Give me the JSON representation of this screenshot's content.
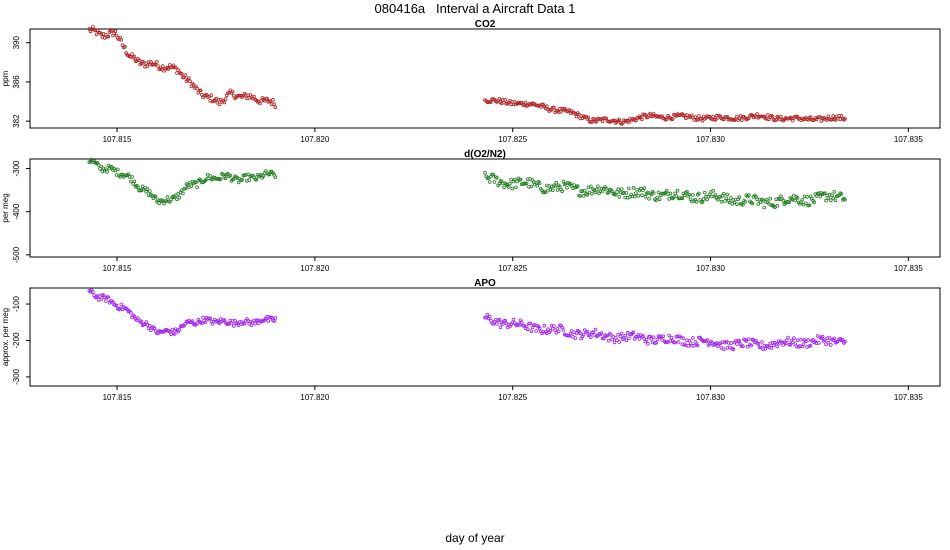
{
  "page": {
    "title": "080416a   Interval a Aircraft Data 1",
    "xlabel": "day of year"
  },
  "chart_data": [
    {
      "type": "scatter",
      "title": "CO2",
      "ylabel": "ppm",
      "color": "#b22222",
      "xlim": [
        107.8128,
        107.8358
      ],
      "ylim": [
        381.3,
        391.4
      ],
      "x_ticks": [
        "107.815",
        "107.820",
        "107.825",
        "107.830",
        "107.835"
      ],
      "y_ticks": [
        "382",
        "386",
        "390"
      ],
      "series": [
        {
          "segments": [
            {
              "x_start": 107.8143,
              "x_end": 107.819,
              "profile": [
                [
                  0,
                  391.3
                ],
                [
                  0.06,
                  390.8
                ],
                [
                  0.14,
                  390.9
                ],
                [
                  0.17,
                  390.2
                ],
                [
                  0.22,
                  388.5
                ],
                [
                  0.27,
                  388.0
                ],
                [
                  0.4,
                  387.6
                ],
                [
                  0.48,
                  387.2
                ],
                [
                  0.56,
                  385.5
                ],
                [
                  0.64,
                  384.3
                ],
                [
                  0.7,
                  384.0
                ],
                [
                  0.76,
                  384.7
                ],
                [
                  0.85,
                  384.5
                ],
                [
                  1,
                  383.8
                ]
              ],
              "noise": 0.35
            },
            {
              "x_start": 107.8243,
              "x_end": 107.8334,
              "profile": [
                [
                  0,
                  384.1
                ],
                [
                  0.08,
                  383.9
                ],
                [
                  0.16,
                  383.5
                ],
                [
                  0.24,
                  382.8
                ],
                [
                  0.3,
                  382.1
                ],
                [
                  0.38,
                  382.0
                ],
                [
                  0.46,
                  382.5
                ],
                [
                  0.56,
                  382.4
                ],
                [
                  0.66,
                  382.3
                ],
                [
                  0.76,
                  382.5
                ],
                [
                  0.86,
                  382.2
                ],
                [
                  1,
                  382.3
                ]
              ],
              "noise": 0.25
            }
          ]
        }
      ]
    },
    {
      "type": "scatter",
      "title": "d(O2/N2)",
      "ylabel": "per meg",
      "color": "#1e7d1e",
      "xlim": [
        107.8128,
        107.8358
      ],
      "ylim": [
        -505,
        -278
      ],
      "x_ticks": [
        "107.815",
        "107.820",
        "107.825",
        "107.830",
        "107.835"
      ],
      "y_ticks": [
        "-300",
        "-400",
        "-500"
      ],
      "series": [
        {
          "segments": [
            {
              "x_start": 107.8143,
              "x_end": 107.819,
              "profile": [
                [
                  0,
                  -283
                ],
                [
                  0.08,
                  -300
                ],
                [
                  0.18,
                  -310
                ],
                [
                  0.28,
                  -345
                ],
                [
                  0.36,
                  -372
                ],
                [
                  0.44,
                  -375
                ],
                [
                  0.52,
                  -345
                ],
                [
                  0.62,
                  -325
                ],
                [
                  0.72,
                  -318
                ],
                [
                  0.82,
                  -326
                ],
                [
                  0.92,
                  -318
                ],
                [
                  1,
                  -312
                ]
              ],
              "noise": 8
            },
            {
              "x_start": 107.8243,
              "x_end": 107.8334,
              "profile": [
                [
                  0,
                  -325
                ],
                [
                  0.1,
                  -335
                ],
                [
                  0.2,
                  -345
                ],
                [
                  0.32,
                  -350
                ],
                [
                  0.44,
                  -358
                ],
                [
                  0.56,
                  -362
                ],
                [
                  0.66,
                  -368
                ],
                [
                  0.76,
                  -378
                ],
                [
                  0.86,
                  -372
                ],
                [
                  1,
                  -365
                ]
              ],
              "noise": 12
            }
          ]
        }
      ]
    },
    {
      "type": "scatter",
      "title": "APO",
      "ylabel": "approx. per meg",
      "color": "#a020f0",
      "xlim": [
        107.8128,
        107.8358
      ],
      "ylim": [
        -325,
        -56
      ],
      "x_ticks": [
        "107.815",
        "107.820",
        "107.825",
        "107.830",
        "107.835"
      ],
      "y_ticks": [
        "-100",
        "-200",
        "-300"
      ],
      "series": [
        {
          "segments": [
            {
              "x_start": 107.8143,
              "x_end": 107.819,
              "profile": [
                [
                  0,
                  -68
                ],
                [
                  0.08,
                  -85
                ],
                [
                  0.18,
                  -110
                ],
                [
                  0.28,
                  -150
                ],
                [
                  0.38,
                  -178
                ],
                [
                  0.46,
                  -175
                ],
                [
                  0.54,
                  -150
                ],
                [
                  0.64,
                  -145
                ],
                [
                  0.74,
                  -150
                ],
                [
                  0.86,
                  -150
                ],
                [
                  1,
                  -140
                ]
              ],
              "noise": 8
            },
            {
              "x_start": 107.8243,
              "x_end": 107.8334,
              "profile": [
                [
                  0,
                  -140
                ],
                [
                  0.1,
                  -160
                ],
                [
                  0.22,
                  -175
                ],
                [
                  0.34,
                  -188
                ],
                [
                  0.46,
                  -195
                ],
                [
                  0.58,
                  -200
                ],
                [
                  0.66,
                  -210
                ],
                [
                  0.76,
                  -212
                ],
                [
                  0.86,
                  -205
                ],
                [
                  1,
                  -200
                ]
              ],
              "noise": 12
            }
          ]
        }
      ]
    }
  ]
}
